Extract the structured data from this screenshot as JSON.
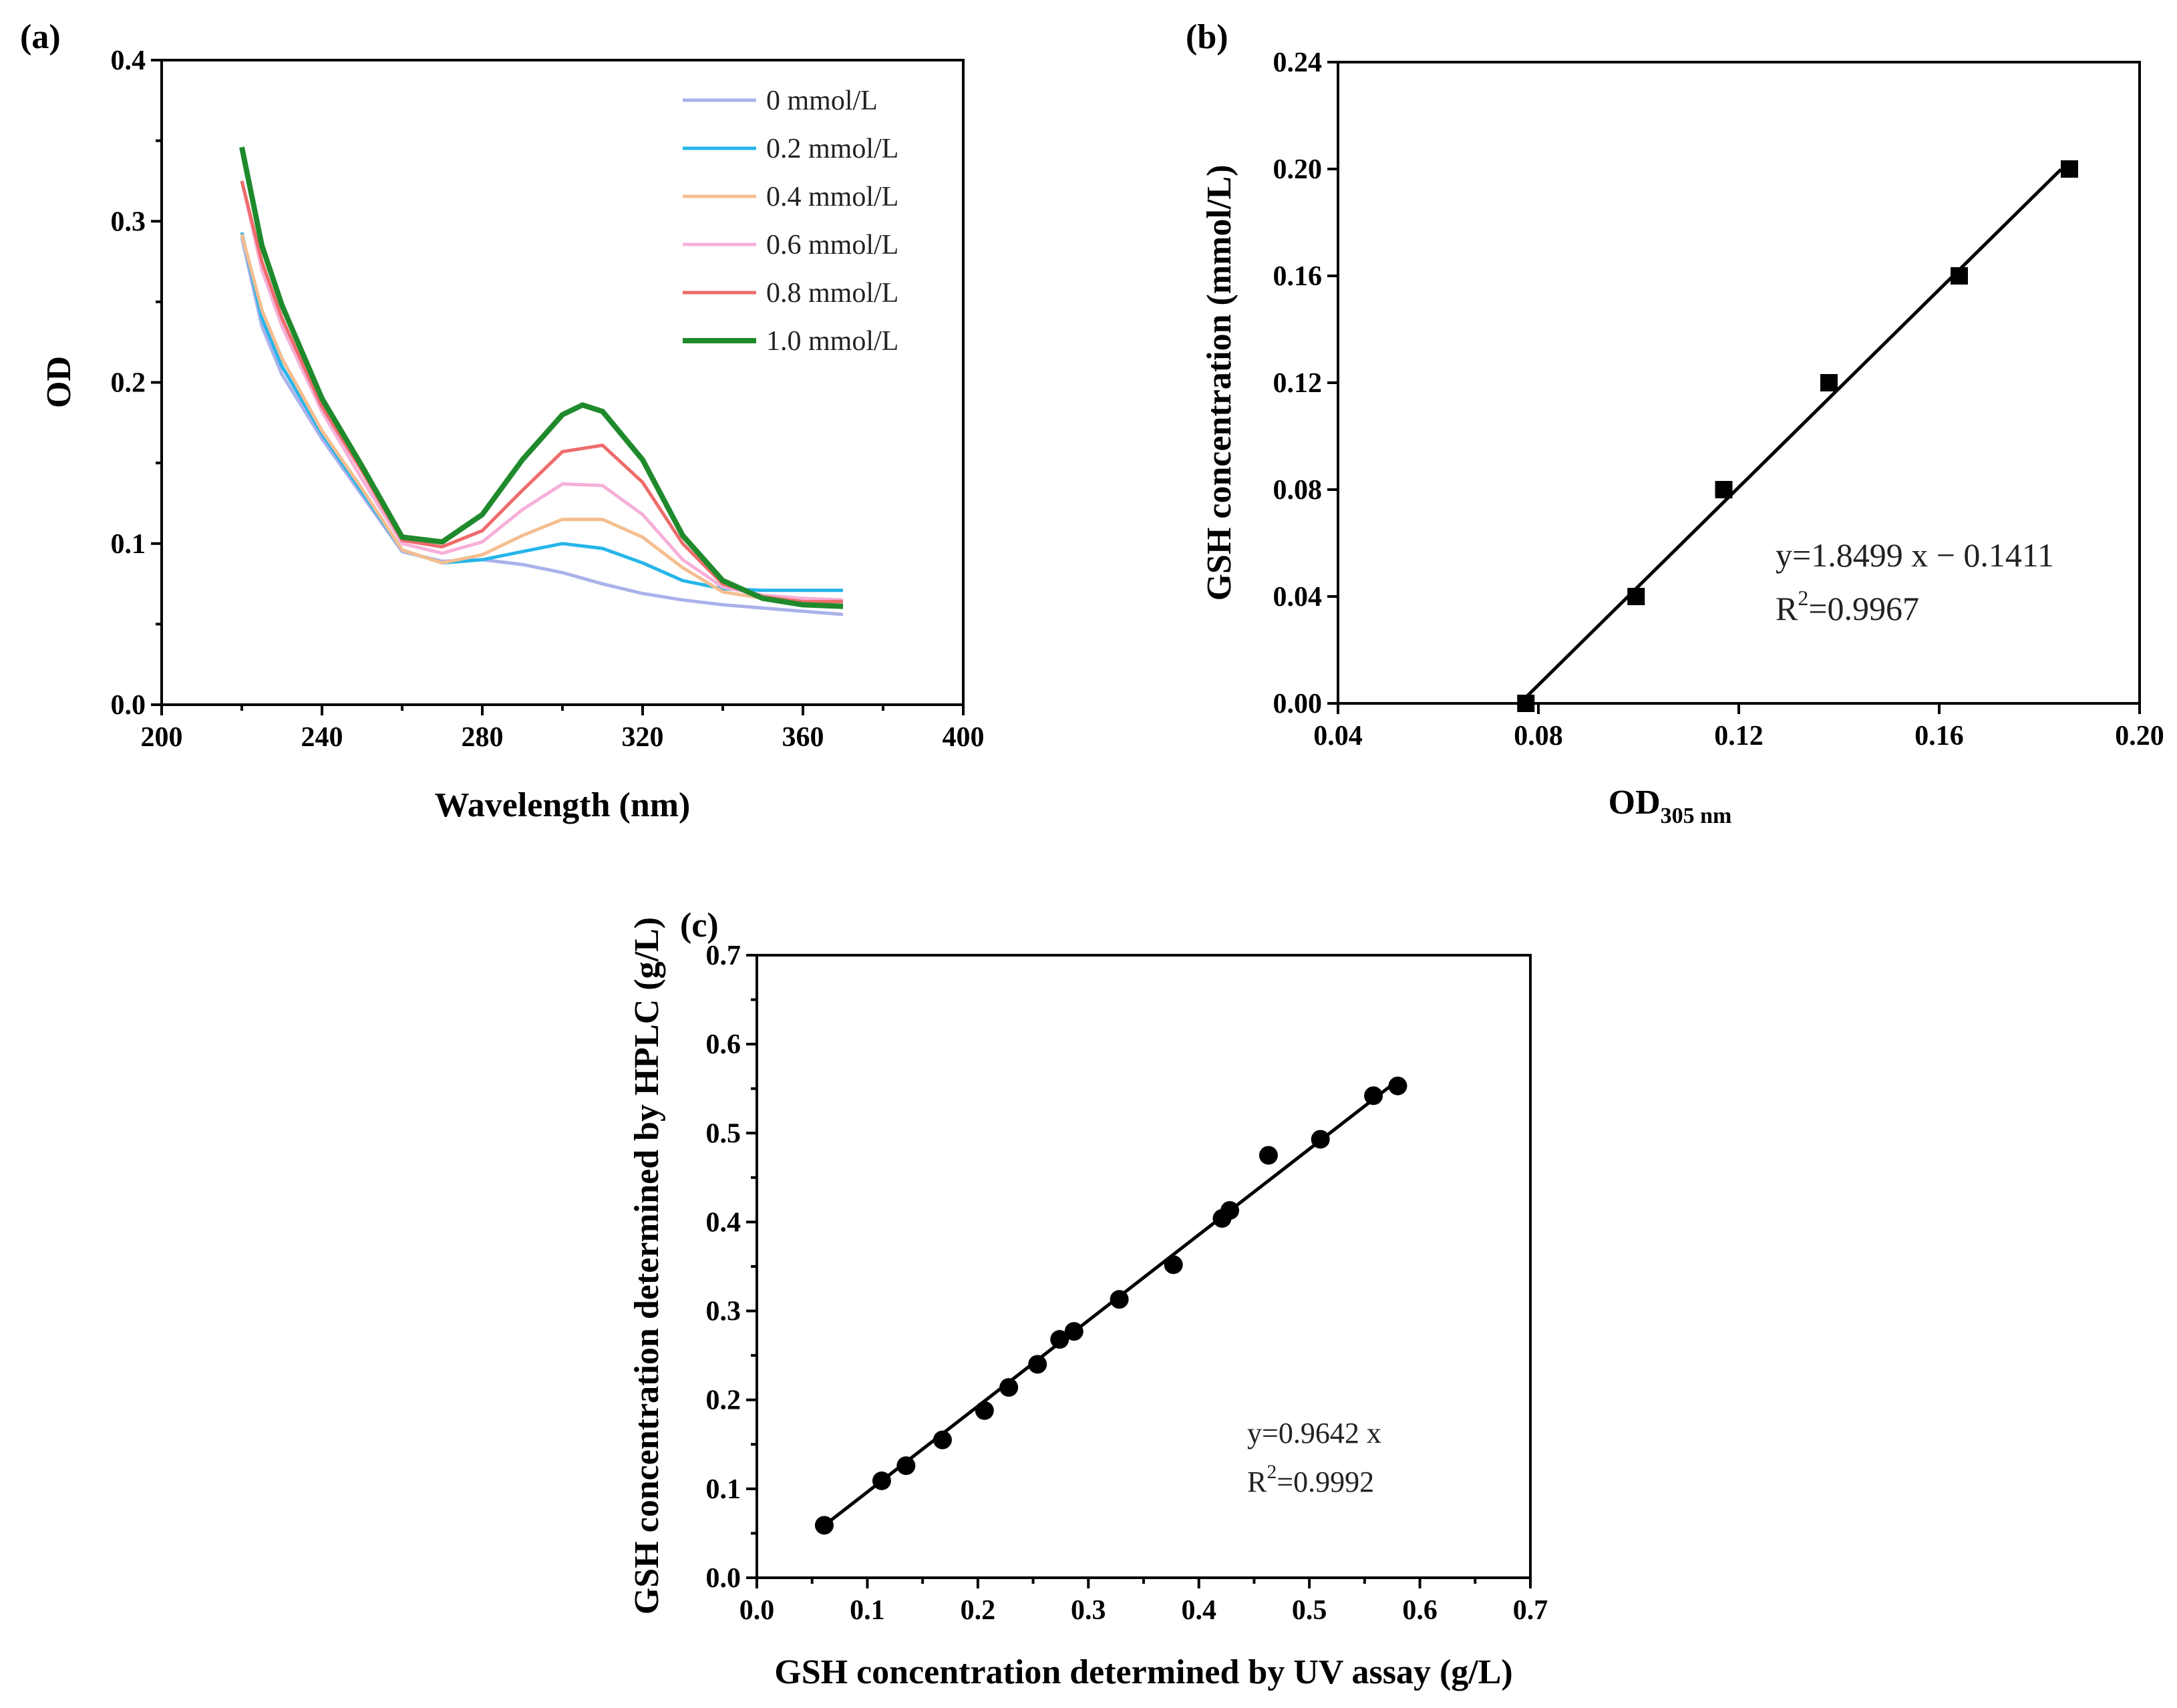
{
  "chart_data": [
    {
      "panel": "(a)",
      "type": "line",
      "xlabel": "Wavelength (nm)",
      "ylabel": "OD",
      "xlim": [
        200,
        400
      ],
      "ylim": [
        0.0,
        0.4
      ],
      "xticks": [
        "200",
        "240",
        "280",
        "320",
        "360",
        "400"
      ],
      "yticks": [
        "0.0",
        "0.1",
        "0.2",
        "0.3",
        "0.4"
      ],
      "legend_position": "top-right",
      "series": [
        {
          "name": "0 mmol/L",
          "color": "#aab2ea",
          "x": [
            220,
            225,
            230,
            240,
            250,
            260,
            270,
            280,
            290,
            300,
            310,
            320,
            330,
            340,
            350,
            360,
            370
          ],
          "y": [
            0.29,
            0.235,
            0.205,
            0.165,
            0.13,
            0.095,
            0.089,
            0.09,
            0.087,
            0.082,
            0.075,
            0.069,
            0.065,
            0.062,
            0.06,
            0.058,
            0.056
          ]
        },
        {
          "name": "0.2 mmol/L",
          "color": "#26b5ea",
          "x": [
            220,
            225,
            230,
            240,
            250,
            260,
            270,
            280,
            290,
            300,
            310,
            320,
            330,
            340,
            350,
            360,
            370
          ],
          "y": [
            0.293,
            0.24,
            0.21,
            0.168,
            0.132,
            0.096,
            0.088,
            0.09,
            0.095,
            0.1,
            0.097,
            0.088,
            0.077,
            0.072,
            0.071,
            0.071,
            0.071
          ]
        },
        {
          "name": "0.4 mmol/L",
          "color": "#f5be90",
          "x": [
            220,
            225,
            230,
            240,
            250,
            260,
            270,
            280,
            290,
            300,
            310,
            320,
            330,
            340,
            350,
            360,
            370
          ],
          "y": [
            0.292,
            0.245,
            0.215,
            0.17,
            0.134,
            0.096,
            0.088,
            0.093,
            0.105,
            0.115,
            0.115,
            0.104,
            0.085,
            0.07,
            0.066,
            0.064,
            0.064
          ]
        },
        {
          "name": "0.6 mmol/L",
          "color": "#f6b0d8",
          "x": [
            220,
            225,
            230,
            240,
            250,
            260,
            270,
            280,
            290,
            300,
            310,
            320,
            330,
            340,
            350,
            360,
            370
          ],
          "y": [
            0.325,
            0.27,
            0.235,
            0.182,
            0.14,
            0.1,
            0.094,
            0.101,
            0.121,
            0.137,
            0.136,
            0.118,
            0.09,
            0.073,
            0.068,
            0.066,
            0.065
          ]
        },
        {
          "name": "0.8 mmol/L",
          "color": "#ee6b6b",
          "x": [
            220,
            225,
            230,
            240,
            250,
            260,
            270,
            280,
            290,
            300,
            310,
            320,
            330,
            340,
            350,
            360,
            370
          ],
          "y": [
            0.325,
            0.275,
            0.24,
            0.185,
            0.145,
            0.102,
            0.098,
            0.108,
            0.133,
            0.157,
            0.161,
            0.138,
            0.1,
            0.075,
            0.067,
            0.064,
            0.064
          ]
        },
        {
          "name": "1.0 mmol/L",
          "color": "#1f8a2c",
          "x": [
            220,
            225,
            230,
            240,
            250,
            260,
            270,
            280,
            290,
            300,
            305,
            310,
            320,
            330,
            340,
            350,
            360,
            370
          ],
          "y": [
            0.346,
            0.285,
            0.248,
            0.19,
            0.148,
            0.104,
            0.101,
            0.118,
            0.152,
            0.18,
            0.186,
            0.182,
            0.152,
            0.105,
            0.077,
            0.066,
            0.062,
            0.061
          ]
        }
      ]
    },
    {
      "panel": "(b)",
      "type": "scatter",
      "xlabel": "OD",
      "xlabel_sub": "305 nm",
      "ylabel": "GSH concentration (mmol/L)",
      "xlim": [
        0.04,
        0.2
      ],
      "ylim": [
        0.0,
        0.24
      ],
      "xticks": [
        "0.04",
        "0.08",
        "0.12",
        "0.16",
        "0.20"
      ],
      "yticks": [
        "0.00",
        "0.04",
        "0.08",
        "0.12",
        "0.16",
        "0.20",
        "0.24"
      ],
      "points": {
        "x": [
          0.0775,
          0.0995,
          0.117,
          0.138,
          0.164,
          0.186
        ],
        "y": [
          0.0,
          0.04,
          0.08,
          0.12,
          0.16,
          0.2
        ]
      },
      "fit": {
        "slope": 1.8499,
        "intercept": -0.1411,
        "x_range": [
          0.0763,
          0.1843
        ]
      },
      "equation": "y=1.8499 x − 0.1411",
      "r2_prefix": "R",
      "r2_sup": "2",
      "r2_value": "=0.9967"
    },
    {
      "panel": "(c)",
      "type": "scatter",
      "xlabel": "GSH concentration determined by UV assay (g/L)",
      "ylabel": "GSH concentration determined by HPLC (g/L)",
      "xlim": [
        0.0,
        0.7
      ],
      "ylim": [
        0.0,
        0.7
      ],
      "xticks": [
        "0.0",
        "0.1",
        "0.2",
        "0.3",
        "0.4",
        "0.5",
        "0.6",
        "0.7"
      ],
      "yticks": [
        "0.0",
        "0.1",
        "0.2",
        "0.3",
        "0.4",
        "0.5",
        "0.6",
        "0.7"
      ],
      "points": {
        "x": [
          0.061,
          0.113,
          0.135,
          0.168,
          0.206,
          0.228,
          0.254,
          0.274,
          0.287,
          0.328,
          0.377,
          0.421,
          0.428,
          0.463,
          0.51,
          0.558,
          0.58
        ],
        "y": [
          0.059,
          0.109,
          0.126,
          0.155,
          0.188,
          0.214,
          0.24,
          0.268,
          0.277,
          0.313,
          0.352,
          0.404,
          0.413,
          0.475,
          0.493,
          0.542,
          0.553
        ]
      },
      "fit": {
        "slope": 0.9642,
        "intercept": 0,
        "x_range": [
          0.061,
          0.58
        ]
      },
      "equation": "y=0.9642 x",
      "r2_prefix": "R",
      "r2_sup": "2",
      "r2_value": "=0.9992"
    }
  ]
}
